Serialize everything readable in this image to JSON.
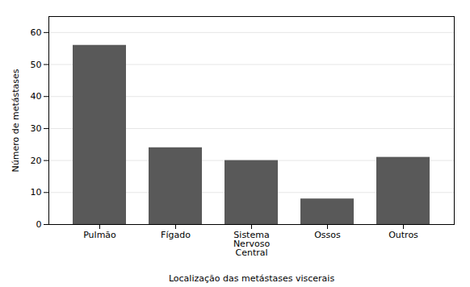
{
  "chart_data": {
    "type": "bar",
    "categories": [
      "Pulmão",
      "Fígado",
      "Sistema\nNervoso\nCentral",
      "Ossos",
      "Outros"
    ],
    "values": [
      56,
      24,
      20,
      8,
      21
    ],
    "color": "#595959",
    "xlabel": "Localização das metástases viscerais",
    "ylabel": "Número de metástases",
    "ylim": [
      0,
      65
    ],
    "yticks": [
      0,
      10,
      20,
      30,
      40,
      50,
      60
    ],
    "grid": true
  }
}
